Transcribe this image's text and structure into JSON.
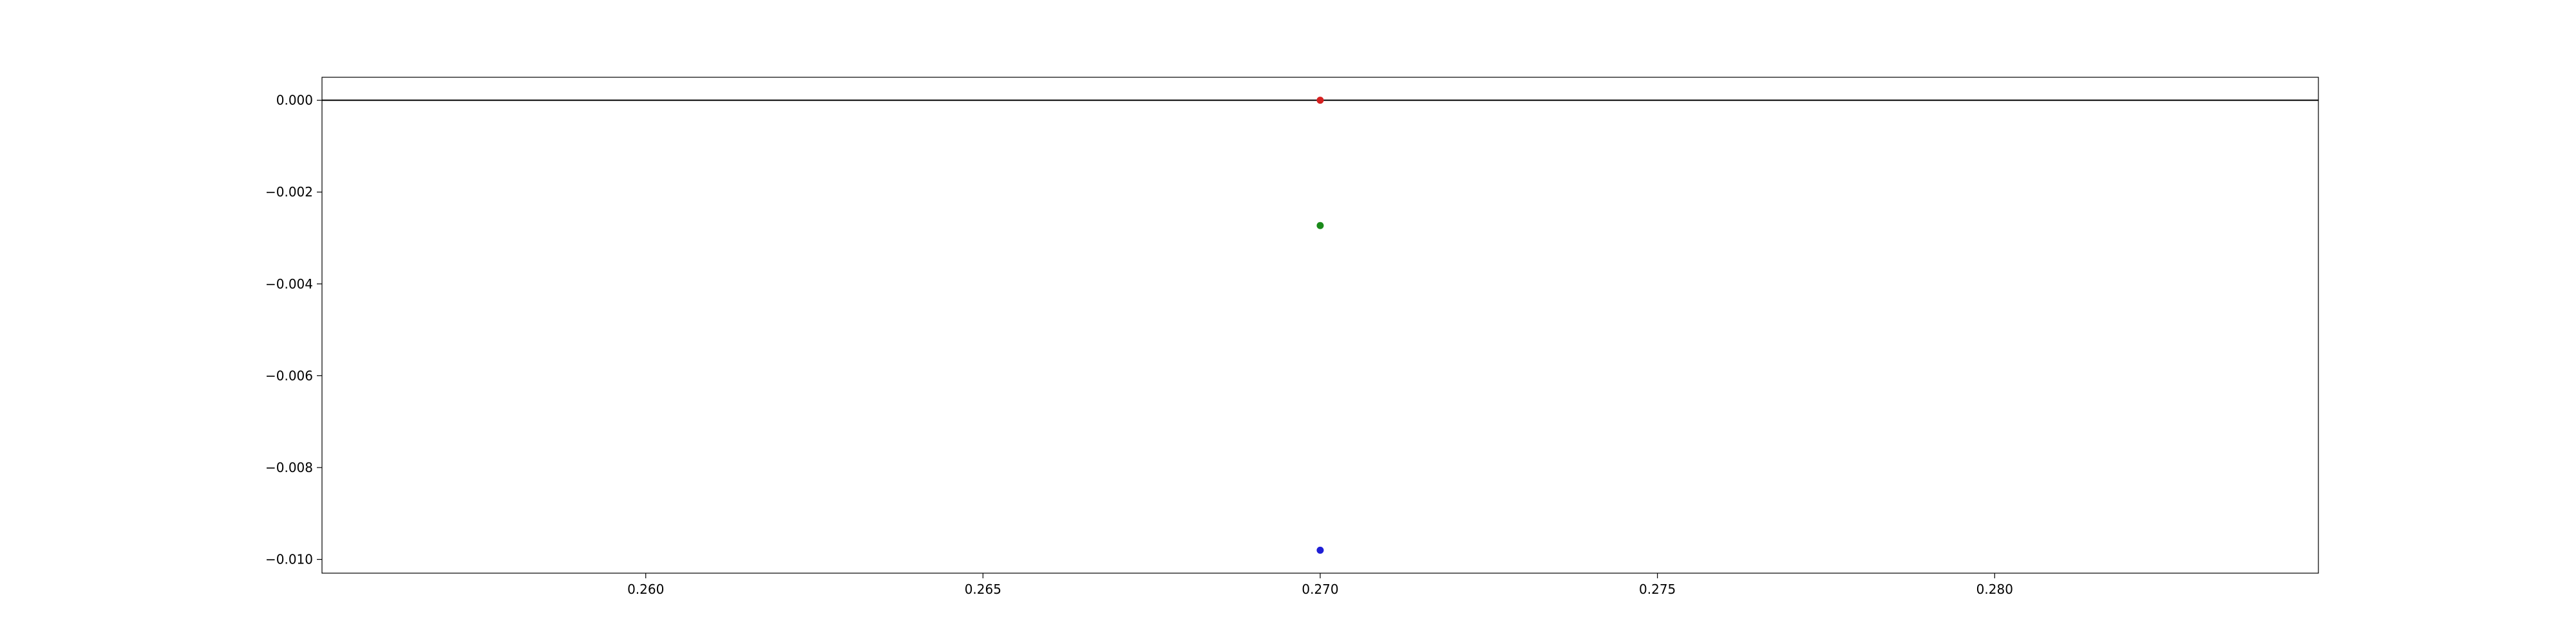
{
  "chart_data": {
    "type": "scatter",
    "title": "",
    "xlabel": "",
    "ylabel": "",
    "xlim": [
      0.2552,
      0.2848
    ],
    "ylim": [
      -0.0103,
      0.0005
    ],
    "grid": false,
    "legend": "none",
    "reference_line": {
      "y": 0.0,
      "color": "#000000"
    },
    "x_ticks": [
      {
        "value": 0.26,
        "label": "0.260"
      },
      {
        "value": 0.265,
        "label": "0.265"
      },
      {
        "value": 0.27,
        "label": "0.270"
      },
      {
        "value": 0.275,
        "label": "0.275"
      },
      {
        "value": 0.28,
        "label": "0.280"
      }
    ],
    "y_ticks": [
      {
        "value": 0.0,
        "label": "0.000"
      },
      {
        "value": -0.002,
        "label": "−0.002"
      },
      {
        "value": -0.004,
        "label": "−0.004"
      },
      {
        "value": -0.006,
        "label": "−0.006"
      },
      {
        "value": -0.008,
        "label": "−0.008"
      },
      {
        "value": -0.01,
        "label": "−0.010"
      }
    ],
    "series": [
      {
        "x": [
          0.27
        ],
        "y": [
          0.0
        ],
        "color": "#d62020"
      },
      {
        "x": [
          0.27
        ],
        "y": [
          -0.00273
        ],
        "color": "#1a8a1a"
      },
      {
        "x": [
          0.27
        ],
        "y": [
          -0.0098
        ],
        "color": "#1f1fd6"
      }
    ]
  }
}
